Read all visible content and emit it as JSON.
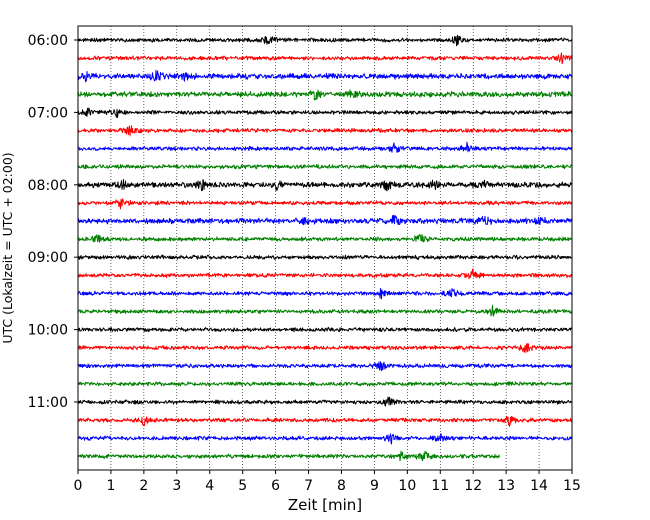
{
  "chart_data": {
    "type": "line",
    "subtype": "helicorder-seismogram",
    "xlabel": "Zeit  [min]",
    "ylabel": "UTC (Lokalzeit = UTC + 02:00)",
    "xlim": [
      0,
      15
    ],
    "x_ticks": [
      0,
      1,
      2,
      3,
      4,
      5,
      6,
      7,
      8,
      9,
      10,
      11,
      12,
      13,
      14,
      15
    ],
    "x_tick_labels": [
      "0",
      "1",
      "2",
      "3",
      "4",
      "5",
      "6",
      "7",
      "8",
      "9",
      "10",
      "11",
      "12",
      "13",
      "14",
      "15"
    ],
    "y_tick_labels": [
      "06:00",
      "07:00",
      "08:00",
      "09:00",
      "10:00",
      "11:00"
    ],
    "trace_colors": [
      "#000000",
      "#ff0000",
      "#0000ff",
      "#008000"
    ],
    "grid": "vertical dotted lines at each minute",
    "rows_per_hour": 4,
    "minutes_per_row": 15,
    "traces": [
      {
        "start": "06:00",
        "color": "#000000",
        "x_end_min": 15,
        "events_min": [
          5.8,
          11.5
        ],
        "amplitude": "low"
      },
      {
        "start": "06:15",
        "color": "#ff0000",
        "x_end_min": 15,
        "events_min": [
          14.7
        ],
        "amplitude": "low"
      },
      {
        "start": "06:30",
        "color": "#0000ff",
        "x_end_min": 15,
        "events_min": [
          0.2,
          2.4,
          3.2
        ],
        "amplitude": "medium"
      },
      {
        "start": "06:45",
        "color": "#008000",
        "x_end_min": 15,
        "events_min": [
          7.2,
          8.3
        ],
        "amplitude": "medium"
      },
      {
        "start": "07:00",
        "color": "#000000",
        "x_end_min": 15,
        "events_min": [
          0.3,
          1.2
        ],
        "amplitude": "low"
      },
      {
        "start": "07:15",
        "color": "#ff0000",
        "x_end_min": 15,
        "events_min": [
          1.6
        ],
        "amplitude": "low"
      },
      {
        "start": "07:30",
        "color": "#0000ff",
        "x_end_min": 15,
        "events_min": [
          9.6,
          11.8
        ],
        "amplitude": "low"
      },
      {
        "start": "07:45",
        "color": "#008000",
        "x_end_min": 15,
        "events_min": [],
        "amplitude": "low"
      },
      {
        "start": "08:00",
        "color": "#000000",
        "x_end_min": 15,
        "events_min": [
          1.3,
          3.8,
          6.0,
          9.4,
          10.8,
          12.3
        ],
        "amplitude": "medium"
      },
      {
        "start": "08:15",
        "color": "#ff0000",
        "x_end_min": 15,
        "events_min": [
          1.3
        ],
        "amplitude": "low"
      },
      {
        "start": "08:30",
        "color": "#0000ff",
        "x_end_min": 15,
        "events_min": [
          6.9,
          9.6,
          12.3,
          14.1
        ],
        "amplitude": "medium"
      },
      {
        "start": "08:45",
        "color": "#008000",
        "x_end_min": 15,
        "events_min": [
          0.6,
          10.4
        ],
        "amplitude": "low"
      },
      {
        "start": "09:00",
        "color": "#000000",
        "x_end_min": 15,
        "events_min": [],
        "amplitude": "low"
      },
      {
        "start": "09:15",
        "color": "#ff0000",
        "x_end_min": 15,
        "events_min": [
          12.0
        ],
        "amplitude": "low"
      },
      {
        "start": "09:30",
        "color": "#0000ff",
        "x_end_min": 15,
        "events_min": [
          9.2,
          11.4
        ],
        "amplitude": "low"
      },
      {
        "start": "09:45",
        "color": "#008000",
        "x_end_min": 15,
        "events_min": [
          12.6
        ],
        "amplitude": "low"
      },
      {
        "start": "10:00",
        "color": "#000000",
        "x_end_min": 15,
        "events_min": [],
        "amplitude": "low"
      },
      {
        "start": "10:15",
        "color": "#ff0000",
        "x_end_min": 15,
        "events_min": [
          13.6
        ],
        "amplitude": "low"
      },
      {
        "start": "10:30",
        "color": "#0000ff",
        "x_end_min": 15,
        "events_min": [
          9.2
        ],
        "amplitude": "low"
      },
      {
        "start": "10:45",
        "color": "#008000",
        "x_end_min": 15,
        "events_min": [],
        "amplitude": "low"
      },
      {
        "start": "11:00",
        "color": "#000000",
        "x_end_min": 15,
        "events_min": [
          9.4
        ],
        "amplitude": "low"
      },
      {
        "start": "11:15",
        "color": "#ff0000",
        "x_end_min": 15,
        "events_min": [
          2.0,
          13.1
        ],
        "amplitude": "low"
      },
      {
        "start": "11:30",
        "color": "#0000ff",
        "x_end_min": 15,
        "events_min": [
          9.5,
          11.0
        ],
        "amplitude": "low"
      },
      {
        "start": "11:45",
        "color": "#008000",
        "x_end_min": 12.8,
        "events_min": [
          9.8,
          10.5
        ],
        "amplitude": "low"
      }
    ]
  }
}
